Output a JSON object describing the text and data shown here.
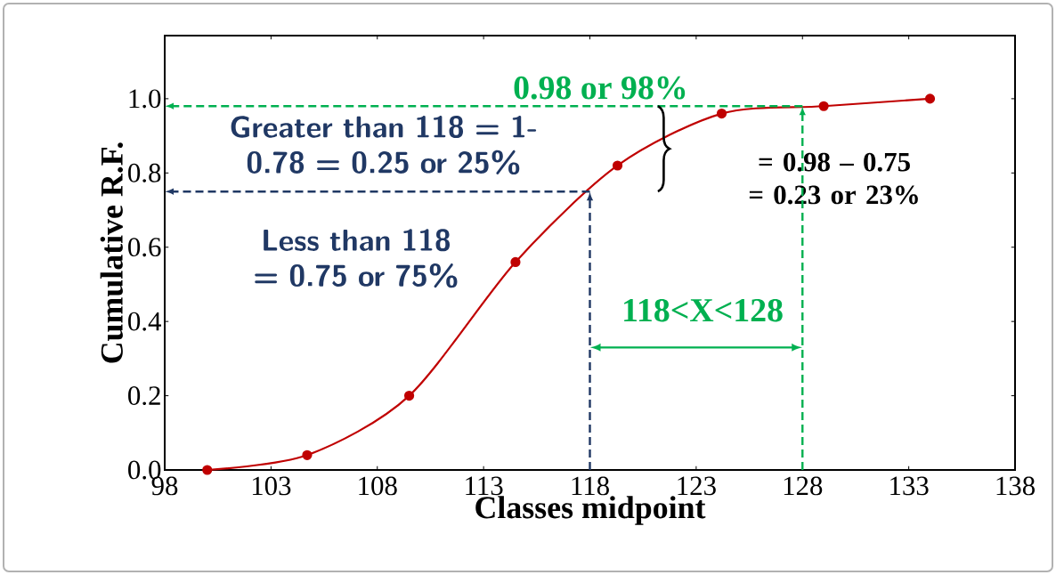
{
  "chart_data": {
    "type": "line",
    "xlabel": "Classes midpoint",
    "ylabel": "Cumulative  R.F.",
    "x": [
      100,
      104.7,
      109.5,
      114.5,
      119.3,
      124.2,
      129,
      134
    ],
    "series": [
      {
        "color": "#c00000",
        "values": [
          0,
          0.04,
          0.2,
          0.56,
          0.82,
          0.96,
          0.98,
          1.0
        ]
      }
    ],
    "marker": "circle",
    "grid": false,
    "xlim": [
      98,
      138
    ],
    "xticks": [
      98,
      103,
      108,
      113,
      118,
      123,
      128,
      133,
      138
    ],
    "ylim": [
      0,
      1.17
    ],
    "yticks": [
      {
        "value": 0,
        "label": "0.0"
      },
      {
        "value": 0.2,
        "label": "0.2"
      },
      {
        "value": 0.4,
        "label": "0.4"
      },
      {
        "value": 0.6,
        "label": "0.6"
      },
      {
        "value": 0.8,
        "label": "0.8"
      },
      {
        "value": 1.0,
        "label": "1.0"
      }
    ],
    "ref_lines": [
      {
        "axis": "y",
        "value": 0.98,
        "label": "0.98 or 98%",
        "color": "#00b050",
        "line_style": "dashed"
      },
      {
        "axis": "x",
        "value": 128,
        "color": "#00b050",
        "line_style": "dashed"
      },
      {
        "axis": "y",
        "value": 0.75,
        "color": "#203864",
        "line_style": "dashed"
      },
      {
        "axis": "x",
        "value": 118,
        "color": "#203864",
        "line_style": "dashed"
      }
    ],
    "annotations": [
      "Greater than 118 = 1- 0.78 = 0.25 or 25%",
      "Less than 118 = 0.75 or 75%",
      "= 0.98 – 0.75 = 0.23 or 23%",
      "118<X<128"
    ]
  }
}
